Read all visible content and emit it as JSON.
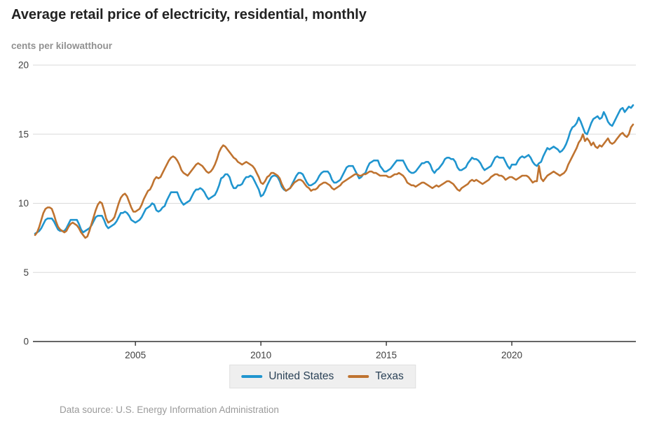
{
  "title": "Average retail price of electricity, residential, monthly",
  "subtitle": "cents per kilowatthour",
  "footer": "Data source: U.S. Energy Information Administration",
  "colors": {
    "united_states": "#2095cf",
    "texas": "#bf7330",
    "gridline": "#d9d9d9",
    "axis": "#333333",
    "tick_label": "#404040",
    "legend_text": "#2b4257",
    "legend_bg": "#efefef"
  },
  "chart_data": {
    "type": "line",
    "title": "Average retail price of electricity, residential, monthly",
    "ylabel": "cents per kilowatthour",
    "xlabel": "",
    "x_start": {
      "year": 2001,
      "month": 1
    },
    "x_end": {
      "year": 2024,
      "month": 11
    },
    "x_ticks": [
      2005,
      2010,
      2015,
      2020
    ],
    "y_ticks": [
      0,
      5,
      10,
      15,
      20
    ],
    "ylim": [
      0,
      20
    ],
    "grid": "horizontal",
    "legend_position": "bottom",
    "series": [
      {
        "name": "United States",
        "color": "#2095cf",
        "values": [
          7.8,
          7.9,
          8.0,
          8.2,
          8.5,
          8.8,
          8.9,
          8.9,
          8.9,
          8.7,
          8.4,
          8.1,
          8.0,
          8.0,
          8.0,
          8.2,
          8.5,
          8.8,
          8.8,
          8.8,
          8.8,
          8.5,
          8.1,
          7.9,
          8.0,
          8.1,
          8.2,
          8.4,
          8.7,
          9.0,
          9.1,
          9.1,
          9.1,
          8.8,
          8.4,
          8.2,
          8.3,
          8.4,
          8.5,
          8.7,
          9.0,
          9.3,
          9.3,
          9.4,
          9.3,
          9.1,
          8.8,
          8.7,
          8.6,
          8.7,
          8.8,
          9.0,
          9.3,
          9.6,
          9.7,
          9.8,
          10.0,
          9.9,
          9.5,
          9.4,
          9.5,
          9.7,
          9.8,
          10.2,
          10.5,
          10.8,
          10.8,
          10.8,
          10.8,
          10.4,
          10.1,
          9.9,
          10.0,
          10.1,
          10.2,
          10.5,
          10.8,
          11.0,
          11.0,
          11.1,
          11.0,
          10.8,
          10.5,
          10.3,
          10.4,
          10.5,
          10.6,
          10.9,
          11.3,
          11.8,
          11.9,
          12.1,
          12.1,
          11.9,
          11.4,
          11.1,
          11.1,
          11.3,
          11.3,
          11.4,
          11.7,
          11.9,
          11.9,
          12.0,
          11.9,
          11.6,
          11.3,
          11.0,
          10.5,
          10.6,
          10.9,
          11.3,
          11.6,
          11.9,
          12.0,
          12.0,
          11.9,
          11.6,
          11.2,
          11.0,
          10.9,
          11.0,
          11.1,
          11.4,
          11.7,
          12.0,
          12.2,
          12.2,
          12.1,
          11.8,
          11.5,
          11.3,
          11.3,
          11.4,
          11.5,
          11.7,
          12.0,
          12.2,
          12.3,
          12.3,
          12.3,
          12.1,
          11.7,
          11.5,
          11.5,
          11.6,
          11.7,
          12.0,
          12.3,
          12.6,
          12.7,
          12.7,
          12.7,
          12.4,
          12.1,
          11.8,
          11.9,
          12.1,
          12.2,
          12.6,
          12.9,
          13.0,
          13.1,
          13.1,
          13.1,
          12.7,
          12.5,
          12.3,
          12.3,
          12.4,
          12.5,
          12.7,
          12.9,
          13.1,
          13.1,
          13.1,
          13.1,
          12.8,
          12.5,
          12.3,
          12.2,
          12.2,
          12.3,
          12.5,
          12.7,
          12.9,
          12.9,
          13.0,
          13.0,
          12.8,
          12.4,
          12.2,
          12.4,
          12.5,
          12.7,
          12.9,
          13.2,
          13.3,
          13.3,
          13.2,
          13.2,
          13.0,
          12.6,
          12.4,
          12.4,
          12.5,
          12.6,
          12.9,
          13.1,
          13.3,
          13.2,
          13.2,
          13.1,
          12.9,
          12.6,
          12.4,
          12.5,
          12.6,
          12.7,
          13.0,
          13.3,
          13.4,
          13.3,
          13.3,
          13.3,
          13.0,
          12.7,
          12.5,
          12.8,
          12.8,
          12.8,
          13.1,
          13.3,
          13.4,
          13.3,
          13.4,
          13.5,
          13.3,
          13.0,
          12.8,
          12.7,
          12.9,
          13.0,
          13.4,
          13.7,
          14.0,
          13.9,
          14.0,
          14.1,
          14.0,
          13.9,
          13.7,
          13.8,
          14.0,
          14.3,
          14.7,
          15.2,
          15.5,
          15.6,
          15.8,
          16.2,
          15.9,
          15.5,
          15.1,
          15.0,
          15.4,
          15.8,
          16.1,
          16.2,
          16.3,
          16.1,
          16.2,
          16.6,
          16.3,
          15.9,
          15.7,
          15.6,
          15.9,
          16.2,
          16.5,
          16.8,
          16.9,
          16.6,
          16.8,
          17.0,
          16.9,
          17.1
        ]
      },
      {
        "name": "Texas",
        "color": "#bf7330",
        "values": [
          7.7,
          7.9,
          8.3,
          8.8,
          9.3,
          9.6,
          9.7,
          9.7,
          9.6,
          9.2,
          8.7,
          8.3,
          8.1,
          8.0,
          7.9,
          8.0,
          8.3,
          8.5,
          8.6,
          8.5,
          8.4,
          8.2,
          7.9,
          7.7,
          7.5,
          7.6,
          8.0,
          8.5,
          9.0,
          9.5,
          9.9,
          10.1,
          10.0,
          9.5,
          8.9,
          8.6,
          8.7,
          8.8,
          9.0,
          9.5,
          10.0,
          10.4,
          10.6,
          10.7,
          10.5,
          10.1,
          9.7,
          9.4,
          9.4,
          9.5,
          9.6,
          9.9,
          10.3,
          10.6,
          10.9,
          11.0,
          11.3,
          11.7,
          11.9,
          11.8,
          11.9,
          12.2,
          12.5,
          12.8,
          13.1,
          13.3,
          13.4,
          13.3,
          13.1,
          12.8,
          12.4,
          12.2,
          12.1,
          12.0,
          12.2,
          12.4,
          12.6,
          12.8,
          12.9,
          12.8,
          12.7,
          12.5,
          12.3,
          12.2,
          12.3,
          12.5,
          12.8,
          13.2,
          13.7,
          14.0,
          14.2,
          14.1,
          13.9,
          13.7,
          13.5,
          13.3,
          13.2,
          13.0,
          12.9,
          12.8,
          12.9,
          13.0,
          12.9,
          12.8,
          12.7,
          12.5,
          12.2,
          11.9,
          11.5,
          11.4,
          11.6,
          11.9,
          12.0,
          12.2,
          12.2,
          12.1,
          12.0,
          11.8,
          11.4,
          11.1,
          10.9,
          11.0,
          11.1,
          11.3,
          11.5,
          11.6,
          11.7,
          11.7,
          11.6,
          11.4,
          11.2,
          11.1,
          10.9,
          11.0,
          11.0,
          11.1,
          11.3,
          11.4,
          11.5,
          11.5,
          11.4,
          11.3,
          11.1,
          11.0,
          11.1,
          11.2,
          11.3,
          11.5,
          11.6,
          11.7,
          11.8,
          11.9,
          12.0,
          12.1,
          12.1,
          12.0,
          12.0,
          12.1,
          12.1,
          12.2,
          12.3,
          12.3,
          12.2,
          12.2,
          12.1,
          12.0,
          12.0,
          12.0,
          12.0,
          11.9,
          11.9,
          12.0,
          12.1,
          12.1,
          12.2,
          12.1,
          12.0,
          11.8,
          11.5,
          11.4,
          11.3,
          11.3,
          11.2,
          11.3,
          11.4,
          11.5,
          11.5,
          11.4,
          11.3,
          11.2,
          11.1,
          11.2,
          11.3,
          11.2,
          11.3,
          11.4,
          11.5,
          11.6,
          11.6,
          11.5,
          11.4,
          11.2,
          11.0,
          10.9,
          11.1,
          11.2,
          11.3,
          11.4,
          11.6,
          11.7,
          11.6,
          11.7,
          11.6,
          11.5,
          11.4,
          11.5,
          11.6,
          11.7,
          11.9,
          12.0,
          12.1,
          12.1,
          12.0,
          12.0,
          11.9,
          11.7,
          11.8,
          11.9,
          11.9,
          11.8,
          11.7,
          11.8,
          11.9,
          12.0,
          12.0,
          12.0,
          11.9,
          11.7,
          11.5,
          11.6,
          11.6,
          12.7,
          11.8,
          11.6,
          11.8,
          12.0,
          12.1,
          12.2,
          12.3,
          12.2,
          12.1,
          12.0,
          12.1,
          12.2,
          12.4,
          12.8,
          13.1,
          13.4,
          13.7,
          14.0,
          14.4,
          14.6,
          15.0,
          14.5,
          14.7,
          14.5,
          14.2,
          14.4,
          14.1,
          14.0,
          14.2,
          14.1,
          14.3,
          14.5,
          14.7,
          14.4,
          14.3,
          14.4,
          14.6,
          14.8,
          15.0,
          15.1,
          14.9,
          14.8,
          15.0,
          15.5,
          15.7
        ]
      }
    ]
  },
  "legend": {
    "items": [
      "United States",
      "Texas"
    ]
  }
}
